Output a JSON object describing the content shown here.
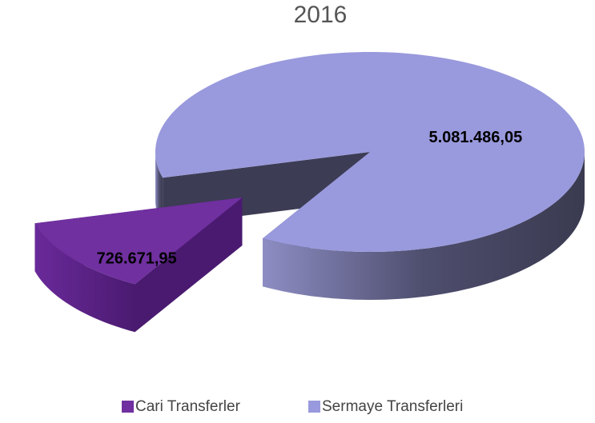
{
  "chart_data": {
    "type": "pie",
    "title": "2016",
    "categories": [
      "Cari Transferler",
      "Sermaye Transferleri"
    ],
    "values": [
      726671.95,
      5081486.05
    ],
    "value_labels": [
      "726.671,95",
      "5.081.486,05"
    ],
    "colors": [
      "#7030a0",
      "#9999dd"
    ],
    "exploded": [
      true,
      false
    ],
    "legend": "bottom"
  }
}
